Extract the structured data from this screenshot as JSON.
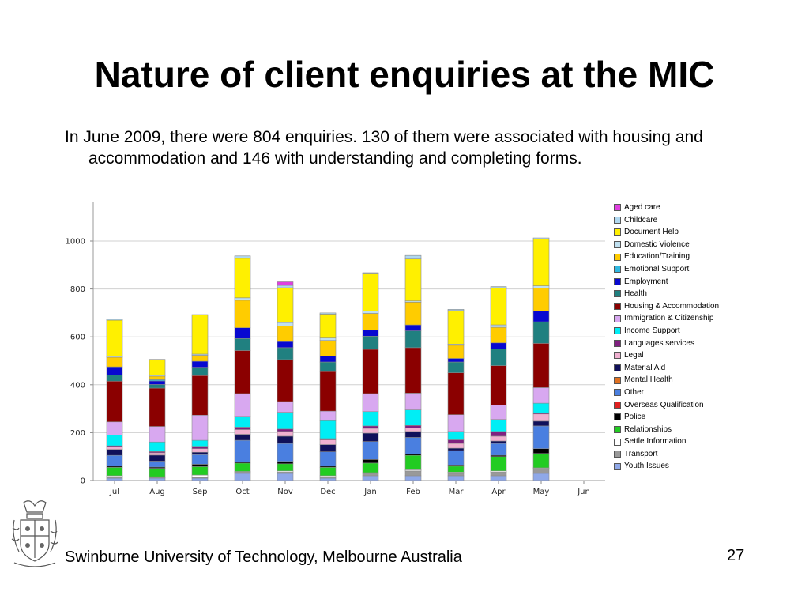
{
  "slide": {
    "title": "Nature of client enquiries at the MIC",
    "body": "In June 2009, there were 804 enquiries. 130 of them were associated with housing and accommodation and 146 with understanding and completing forms.",
    "footer": "Swinburne University of Technology, Melbourne Australia",
    "page_number": "27"
  },
  "chart_data": {
    "type": "bar",
    "stacked": true,
    "title": "",
    "xlabel": "",
    "ylabel": "",
    "ylim": [
      0,
      1000
    ],
    "yticks": [
      0,
      200,
      400,
      600,
      800,
      1000
    ],
    "grid": true,
    "legend_position": "right",
    "categories": [
      "Jul",
      "Aug",
      "Sep",
      "Oct",
      "Nov",
      "Dec",
      "Jan",
      "Feb",
      "Mar",
      "Apr",
      "May",
      "Jun"
    ],
    "series": [
      {
        "name": "Youth Issues",
        "color": "#8FA8E8",
        "values": [
          10,
          10,
          10,
          30,
          30,
          10,
          20,
          20,
          20,
          20,
          30,
          0
        ]
      },
      {
        "name": "Transport",
        "color": "#999999",
        "values": [
          5,
          3,
          3,
          5,
          5,
          5,
          10,
          20,
          10,
          15,
          20,
          0
        ]
      },
      {
        "name": "Settle Information",
        "color": "#FFFFFF",
        "values": [
          5,
          3,
          10,
          3,
          5,
          5,
          3,
          5,
          5,
          5,
          3,
          0
        ]
      },
      {
        "name": "Relationships",
        "color": "#22CC22",
        "values": [
          35,
          35,
          35,
          35,
          30,
          35,
          40,
          60,
          25,
          60,
          60,
          0
        ]
      },
      {
        "name": "Police",
        "color": "#000000",
        "values": [
          5,
          5,
          10,
          5,
          10,
          5,
          15,
          5,
          5,
          5,
          20,
          0
        ]
      },
      {
        "name": "Overseas Qualification",
        "color": "#E02020",
        "values": [
          0,
          0,
          0,
          0,
          0,
          0,
          0,
          0,
          0,
          0,
          0,
          0
        ]
      },
      {
        "name": "Other",
        "color": "#4A7FE0",
        "values": [
          45,
          25,
          40,
          90,
          75,
          60,
          75,
          70,
          60,
          50,
          95,
          0
        ]
      },
      {
        "name": "Mental Health",
        "color": "#E07020",
        "values": [
          0,
          0,
          0,
          0,
          0,
          0,
          0,
          0,
          0,
          0,
          0,
          0
        ]
      },
      {
        "name": "Material Aid",
        "color": "#10105A",
        "values": [
          25,
          25,
          10,
          25,
          30,
          30,
          35,
          25,
          10,
          10,
          20,
          0
        ]
      },
      {
        "name": "Legal",
        "color": "#F0B0D0",
        "values": [
          10,
          10,
          15,
          20,
          20,
          20,
          20,
          15,
          20,
          20,
          30,
          0
        ]
      },
      {
        "name": "Languages services",
        "color": "#802080",
        "values": [
          5,
          5,
          10,
          10,
          10,
          5,
          10,
          10,
          15,
          20,
          5,
          0
        ]
      },
      {
        "name": "Income Support",
        "color": "#00EEF5",
        "values": [
          45,
          40,
          25,
          45,
          70,
          75,
          60,
          65,
          35,
          50,
          40,
          0
        ]
      },
      {
        "name": "Immigration & Citizenship",
        "color": "#D8A8F0",
        "values": [
          55,
          65,
          105,
          95,
          45,
          40,
          75,
          70,
          70,
          60,
          65,
          0
        ]
      },
      {
        "name": "Housing & Accommodation",
        "color": "#8B0000",
        "values": [
          170,
          160,
          165,
          180,
          175,
          165,
          185,
          190,
          175,
          165,
          185,
          0
        ]
      },
      {
        "name": "Health",
        "color": "#208080",
        "values": [
          25,
          15,
          35,
          50,
          50,
          40,
          55,
          70,
          45,
          70,
          90,
          0
        ]
      },
      {
        "name": "Employment",
        "color": "#0808D0",
        "values": [
          35,
          15,
          25,
          45,
          25,
          25,
          25,
          25,
          15,
          25,
          45,
          0
        ]
      },
      {
        "name": "Emotional Support",
        "color": "#30B8E0",
        "values": [
          0,
          5,
          0,
          0,
          0,
          0,
          0,
          0,
          0,
          0,
          0,
          0
        ]
      },
      {
        "name": "Education/Training",
        "color": "#FFCC00",
        "values": [
          40,
          15,
          25,
          115,
          65,
          65,
          70,
          95,
          55,
          65,
          95,
          0
        ]
      },
      {
        "name": "Domestic Violence",
        "color": "#BFE0F0",
        "values": [
          5,
          5,
          5,
          10,
          15,
          10,
          10,
          5,
          5,
          10,
          10,
          0
        ]
      },
      {
        "name": "Document Help",
        "color": "#FFF000",
        "values": [
          150,
          65,
          165,
          165,
          145,
          100,
          155,
          175,
          140,
          155,
          195,
          0
        ]
      },
      {
        "name": "Childcare",
        "color": "#B0D8F0",
        "values": [
          5,
          0,
          0,
          10,
          10,
          5,
          5,
          15,
          5,
          5,
          5,
          0
        ]
      },
      {
        "name": "Aged care",
        "color": "#E040E0",
        "values": [
          0,
          0,
          0,
          0,
          15,
          0,
          0,
          0,
          0,
          0,
          0,
          0
        ]
      }
    ]
  }
}
